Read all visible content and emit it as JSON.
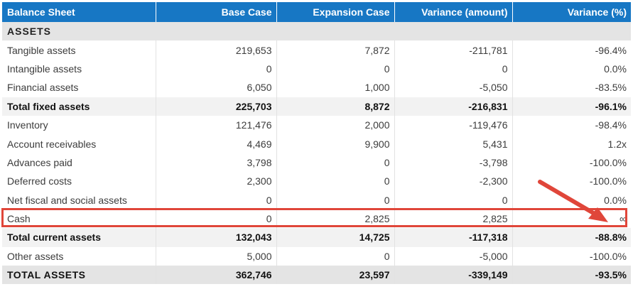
{
  "header": {
    "col0": "Balance Sheet",
    "col1": "Base Case",
    "col2": "Expansion Case",
    "col3": "Variance (amount)",
    "col4": "Variance (%)"
  },
  "rows": [
    {
      "type": "section",
      "label": "ASSETS"
    },
    {
      "type": "item",
      "label": "Tangible assets",
      "base": "219,653",
      "expansion": "7,872",
      "var_amount": "-211,781",
      "var_pct": "-96.4%"
    },
    {
      "type": "item",
      "label": "Intangible assets",
      "base": "0",
      "expansion": "0",
      "var_amount": "0",
      "var_pct": "0.0%"
    },
    {
      "type": "item",
      "label": "Financial assets",
      "base": "6,050",
      "expansion": "1,000",
      "var_amount": "-5,050",
      "var_pct": "-83.5%"
    },
    {
      "type": "total",
      "label": "Total fixed assets",
      "base": "225,703",
      "expansion": "8,872",
      "var_amount": "-216,831",
      "var_pct": "-96.1%"
    },
    {
      "type": "item",
      "label": "Inventory",
      "base": "121,476",
      "expansion": "2,000",
      "var_amount": "-119,476",
      "var_pct": "-98.4%"
    },
    {
      "type": "item",
      "label": "Account receivables",
      "base": "4,469",
      "expansion": "9,900",
      "var_amount": "5,431",
      "var_pct": "1.2x"
    },
    {
      "type": "item",
      "label": "Advances paid",
      "base": "3,798",
      "expansion": "0",
      "var_amount": "-3,798",
      "var_pct": "-100.0%"
    },
    {
      "type": "item",
      "label": "Deferred costs",
      "base": "2,300",
      "expansion": "0",
      "var_amount": "-2,300",
      "var_pct": "-100.0%"
    },
    {
      "type": "item",
      "label": "Net fiscal and social assets",
      "base": "0",
      "expansion": "0",
      "var_amount": "0",
      "var_pct": "0.0%"
    },
    {
      "type": "item",
      "label": "Cash",
      "base": "0",
      "expansion": "2,825",
      "var_amount": "2,825",
      "var_pct": "∞",
      "highlight": true
    },
    {
      "type": "total",
      "label": "Total current assets",
      "base": "132,043",
      "expansion": "14,725",
      "var_amount": "-117,318",
      "var_pct": "-88.8%"
    },
    {
      "type": "item",
      "label": "Other assets",
      "base": "5,000",
      "expansion": "0",
      "var_amount": "-5,000",
      "var_pct": "-100.0%"
    },
    {
      "type": "grand",
      "label": "TOTAL ASSETS",
      "base": "362,746",
      "expansion": "23,597",
      "var_amount": "-339,149",
      "var_pct": "-93.5%"
    }
  ],
  "annotation": {
    "highlight_color": "#e0463a",
    "target_row": "Cash"
  }
}
